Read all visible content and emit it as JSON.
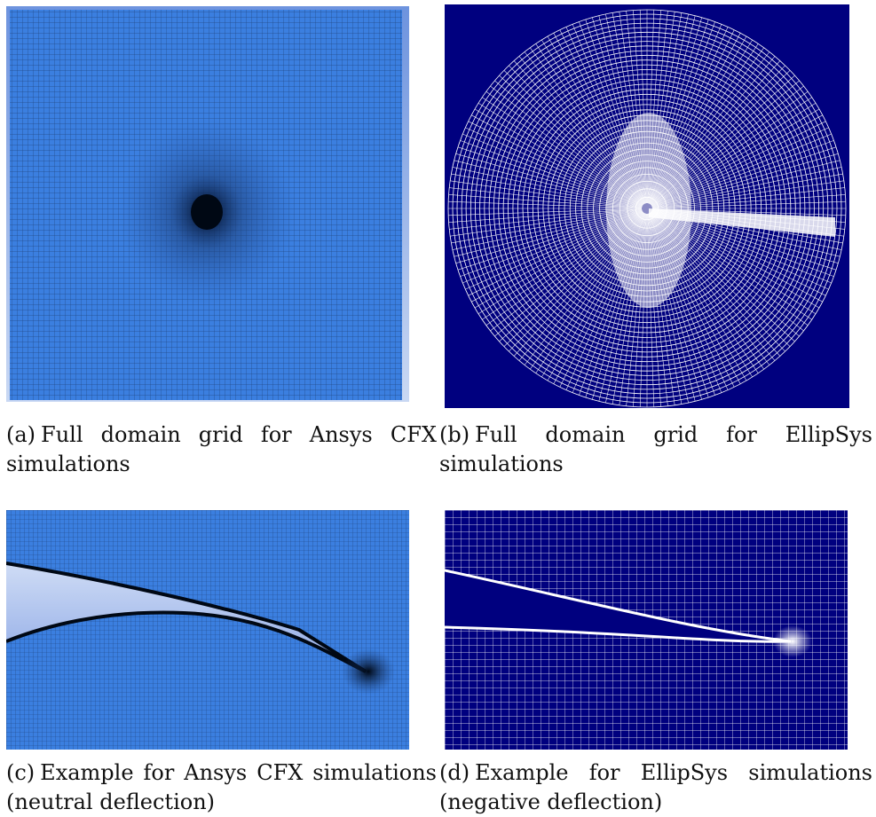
{
  "figure": {
    "panels": [
      {
        "id": "a",
        "letter": "(a)",
        "caption": "Full domain grid for Ansys CFX simulations",
        "colors": {
          "field": "#3b7fe0",
          "line": "#16325e",
          "dense": "#000814",
          "frame": "#6d93de"
        }
      },
      {
        "id": "b",
        "letter": "(b)",
        "caption": "Full domain grid for EllipSys simulations",
        "colors": {
          "background": "#00007f",
          "line": "#ffffff"
        }
      },
      {
        "id": "c",
        "letter": "(c)",
        "caption": "Example for Ansys CFX simulations (neutral deflection)",
        "colors": {
          "field": "#3b7fe0",
          "line": "#16325e",
          "airfoil_top": "#cfdcf5",
          "airfoil_bottom": "#8ea9e6"
        }
      },
      {
        "id": "d",
        "letter": "(d)",
        "caption": "Example for EllipSys simulations (negative deflection)",
        "colors": {
          "background": "#00007f",
          "line": "#ffffff"
        }
      }
    ]
  }
}
